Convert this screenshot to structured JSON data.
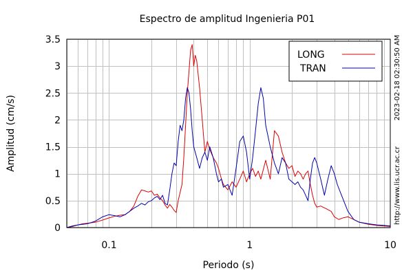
{
  "chart_data": {
    "type": "line",
    "title": "Espectro de amplitud Ingenieria P01",
    "xlabel": "Periodo (s)",
    "ylabel": "Amplitud (cm/s)",
    "x_scale": "log",
    "xlim": [
      0.05,
      10
    ],
    "ylim": [
      0,
      3.5
    ],
    "x_ticks": [
      {
        "value": 0.1,
        "label": "0.1"
      },
      {
        "value": 1,
        "label": "1"
      },
      {
        "value": 10,
        "label": "10"
      }
    ],
    "y_ticks": [
      {
        "value": 0,
        "label": "0"
      },
      {
        "value": 0.5,
        "label": "0.5"
      },
      {
        "value": 1,
        "label": "1"
      },
      {
        "value": 1.5,
        "label": "1.5"
      },
      {
        "value": 2,
        "label": "2"
      },
      {
        "value": 2.5,
        "label": "2.5"
      },
      {
        "value": 3,
        "label": "3"
      },
      {
        "value": 3.5,
        "label": "3.5"
      }
    ],
    "grid": true,
    "legend_position": "top-right",
    "series": [
      {
        "name": "LONG",
        "color": "#dd0000",
        "points": [
          [
            0.05,
            0.0
          ],
          [
            0.055,
            0.02
          ],
          [
            0.06,
            0.05
          ],
          [
            0.065,
            0.07
          ],
          [
            0.07,
            0.08
          ],
          [
            0.08,
            0.1
          ],
          [
            0.09,
            0.14
          ],
          [
            0.1,
            0.18
          ],
          [
            0.11,
            0.21
          ],
          [
            0.12,
            0.23
          ],
          [
            0.13,
            0.24
          ],
          [
            0.14,
            0.3
          ],
          [
            0.15,
            0.4
          ],
          [
            0.16,
            0.58
          ],
          [
            0.17,
            0.7
          ],
          [
            0.18,
            0.68
          ],
          [
            0.19,
            0.66
          ],
          [
            0.2,
            0.68
          ],
          [
            0.21,
            0.6
          ],
          [
            0.22,
            0.62
          ],
          [
            0.23,
            0.55
          ],
          [
            0.24,
            0.5
          ],
          [
            0.25,
            0.42
          ],
          [
            0.26,
            0.36
          ],
          [
            0.27,
            0.43
          ],
          [
            0.28,
            0.38
          ],
          [
            0.29,
            0.32
          ],
          [
            0.3,
            0.28
          ],
          [
            0.31,
            0.5
          ],
          [
            0.33,
            0.8
          ],
          [
            0.34,
            1.3
          ],
          [
            0.35,
            1.9
          ],
          [
            0.36,
            2.5
          ],
          [
            0.37,
            2.9
          ],
          [
            0.38,
            3.3
          ],
          [
            0.39,
            3.4
          ],
          [
            0.4,
            3.0
          ],
          [
            0.41,
            3.2
          ],
          [
            0.42,
            3.1
          ],
          [
            0.44,
            2.6
          ],
          [
            0.46,
            2.0
          ],
          [
            0.48,
            1.4
          ],
          [
            0.5,
            1.6
          ],
          [
            0.52,
            1.45
          ],
          [
            0.55,
            1.3
          ],
          [
            0.58,
            1.2
          ],
          [
            0.6,
            1.1
          ],
          [
            0.63,
            0.9
          ],
          [
            0.65,
            0.8
          ],
          [
            0.7,
            0.7
          ],
          [
            0.75,
            0.85
          ],
          [
            0.8,
            0.75
          ],
          [
            0.85,
            0.9
          ],
          [
            0.9,
            1.05
          ],
          [
            0.95,
            0.85
          ],
          [
            1.0,
            1.0
          ],
          [
            1.05,
            1.1
          ],
          [
            1.1,
            0.95
          ],
          [
            1.15,
            1.05
          ],
          [
            1.2,
            0.9
          ],
          [
            1.3,
            1.25
          ],
          [
            1.4,
            0.9
          ],
          [
            1.5,
            1.8
          ],
          [
            1.6,
            1.7
          ],
          [
            1.7,
            1.4
          ],
          [
            1.8,
            1.2
          ],
          [
            1.9,
            1.1
          ],
          [
            2.0,
            1.15
          ],
          [
            2.1,
            0.95
          ],
          [
            2.2,
            1.05
          ],
          [
            2.3,
            1.0
          ],
          [
            2.4,
            0.9
          ],
          [
            2.5,
            1.0
          ],
          [
            2.6,
            1.05
          ],
          [
            2.7,
            0.8
          ],
          [
            2.8,
            0.6
          ],
          [
            2.9,
            0.45
          ],
          [
            3.0,
            0.38
          ],
          [
            3.2,
            0.4
          ],
          [
            3.5,
            0.35
          ],
          [
            3.8,
            0.3
          ],
          [
            4.0,
            0.2
          ],
          [
            4.3,
            0.15
          ],
          [
            4.6,
            0.18
          ],
          [
            5.0,
            0.2
          ],
          [
            5.5,
            0.15
          ],
          [
            6.0,
            0.1
          ],
          [
            7.0,
            0.06
          ],
          [
            8.0,
            0.04
          ],
          [
            9.0,
            0.03
          ],
          [
            10.0,
            0.02
          ]
        ]
      },
      {
        "name": "TRAN",
        "color": "#0000aa",
        "points": [
          [
            0.05,
            0.0
          ],
          [
            0.055,
            0.03
          ],
          [
            0.06,
            0.05
          ],
          [
            0.065,
            0.06
          ],
          [
            0.07,
            0.07
          ],
          [
            0.08,
            0.12
          ],
          [
            0.09,
            0.2
          ],
          [
            0.1,
            0.24
          ],
          [
            0.11,
            0.22
          ],
          [
            0.12,
            0.2
          ],
          [
            0.13,
            0.24
          ],
          [
            0.14,
            0.3
          ],
          [
            0.15,
            0.36
          ],
          [
            0.16,
            0.4
          ],
          [
            0.17,
            0.45
          ],
          [
            0.18,
            0.42
          ],
          [
            0.19,
            0.48
          ],
          [
            0.2,
            0.5
          ],
          [
            0.21,
            0.55
          ],
          [
            0.22,
            0.58
          ],
          [
            0.23,
            0.52
          ],
          [
            0.24,
            0.6
          ],
          [
            0.25,
            0.45
          ],
          [
            0.26,
            0.42
          ],
          [
            0.27,
            0.7
          ],
          [
            0.28,
            1.0
          ],
          [
            0.29,
            1.2
          ],
          [
            0.3,
            1.15
          ],
          [
            0.31,
            1.6
          ],
          [
            0.32,
            1.9
          ],
          [
            0.33,
            1.8
          ],
          [
            0.34,
            2.0
          ],
          [
            0.35,
            2.4
          ],
          [
            0.36,
            2.6
          ],
          [
            0.37,
            2.5
          ],
          [
            0.38,
            2.2
          ],
          [
            0.39,
            1.8
          ],
          [
            0.4,
            1.5
          ],
          [
            0.42,
            1.3
          ],
          [
            0.44,
            1.1
          ],
          [
            0.46,
            1.3
          ],
          [
            0.48,
            1.4
          ],
          [
            0.5,
            1.25
          ],
          [
            0.52,
            1.5
          ],
          [
            0.55,
            1.3
          ],
          [
            0.58,
            1.0
          ],
          [
            0.6,
            0.85
          ],
          [
            0.63,
            0.9
          ],
          [
            0.65,
            0.75
          ],
          [
            0.7,
            0.8
          ],
          [
            0.75,
            0.6
          ],
          [
            0.8,
            1.1
          ],
          [
            0.85,
            1.6
          ],
          [
            0.9,
            1.7
          ],
          [
            0.95,
            1.4
          ],
          [
            1.0,
            0.9
          ],
          [
            1.05,
            1.3
          ],
          [
            1.1,
            1.8
          ],
          [
            1.15,
            2.3
          ],
          [
            1.2,
            2.6
          ],
          [
            1.25,
            2.4
          ],
          [
            1.3,
            1.9
          ],
          [
            1.4,
            1.5
          ],
          [
            1.5,
            1.2
          ],
          [
            1.6,
            1.0
          ],
          [
            1.7,
            1.3
          ],
          [
            1.8,
            1.2
          ],
          [
            1.9,
            0.9
          ],
          [
            2.0,
            0.85
          ],
          [
            2.1,
            0.8
          ],
          [
            2.2,
            0.85
          ],
          [
            2.3,
            0.75
          ],
          [
            2.4,
            0.7
          ],
          [
            2.5,
            0.6
          ],
          [
            2.6,
            0.5
          ],
          [
            2.7,
            0.9
          ],
          [
            2.8,
            1.2
          ],
          [
            2.9,
            1.3
          ],
          [
            3.0,
            1.2
          ],
          [
            3.2,
            0.9
          ],
          [
            3.4,
            0.6
          ],
          [
            3.6,
            0.9
          ],
          [
            3.8,
            1.15
          ],
          [
            4.0,
            1.0
          ],
          [
            4.2,
            0.8
          ],
          [
            4.5,
            0.6
          ],
          [
            5.0,
            0.3
          ],
          [
            5.5,
            0.15
          ],
          [
            6.0,
            0.1
          ],
          [
            7.0,
            0.07
          ],
          [
            8.0,
            0.05
          ],
          [
            9.0,
            0.04
          ],
          [
            10.0,
            0.03
          ]
        ]
      }
    ]
  },
  "side_annotations": {
    "timestamp": "2023-02-18 02:30:50 AM",
    "url": "http://www.lis.ucr.ac.cr"
  }
}
